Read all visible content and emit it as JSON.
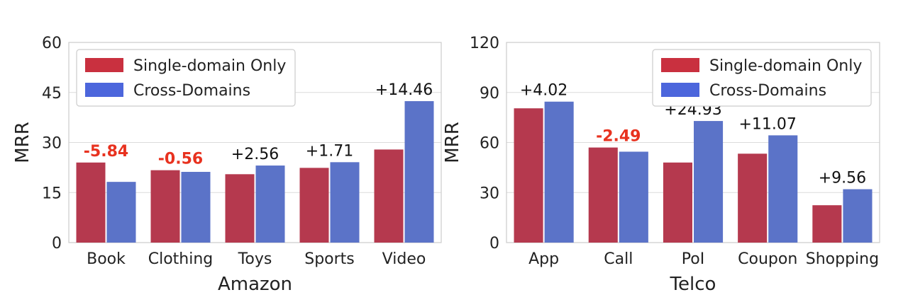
{
  "colors": {
    "single": "#b5394e",
    "cross": "#5b73c8",
    "legend_single": "#c9303f",
    "legend_cross": "#4c66dc",
    "negative": "#e8321f"
  },
  "chart_data": [
    {
      "type": "bar",
      "xlabel": "Amazon",
      "ylabel": "MRR",
      "ylim": [
        0,
        60
      ],
      "yticks": [
        0,
        15,
        30,
        45,
        60
      ],
      "grid": true,
      "legend_position": "top-left",
      "categories": [
        "Book",
        "Clothing",
        "Toys",
        "Sports",
        "Video"
      ],
      "series": [
        {
          "name": "Single-domain Only",
          "values": [
            24.0,
            21.7,
            20.5,
            22.4,
            27.9
          ]
        },
        {
          "name": "Cross-Domains",
          "values": [
            18.2,
            21.2,
            23.1,
            24.1,
            42.4
          ]
        }
      ],
      "annotations": [
        "-5.84",
        "-0.56",
        "+2.56",
        "+1.71",
        "+14.46"
      ]
    },
    {
      "type": "bar",
      "xlabel": "Telco",
      "ylabel": "MRR",
      "ylim": [
        0,
        120
      ],
      "yticks": [
        0,
        30,
        60,
        90,
        120
      ],
      "grid": true,
      "legend_position": "top-right",
      "categories": [
        "App",
        "Call",
        "PoI",
        "Coupon",
        "Shopping"
      ],
      "series": [
        {
          "name": "Single-domain Only",
          "values": [
            80.5,
            57.0,
            48.0,
            53.3,
            22.4
          ]
        },
        {
          "name": "Cross-Domains",
          "values": [
            84.5,
            54.5,
            72.9,
            64.3,
            32.0
          ]
        }
      ],
      "annotations": [
        "+4.02",
        "-2.49",
        "+24.93",
        "+11.07",
        "+9.56"
      ]
    }
  ]
}
